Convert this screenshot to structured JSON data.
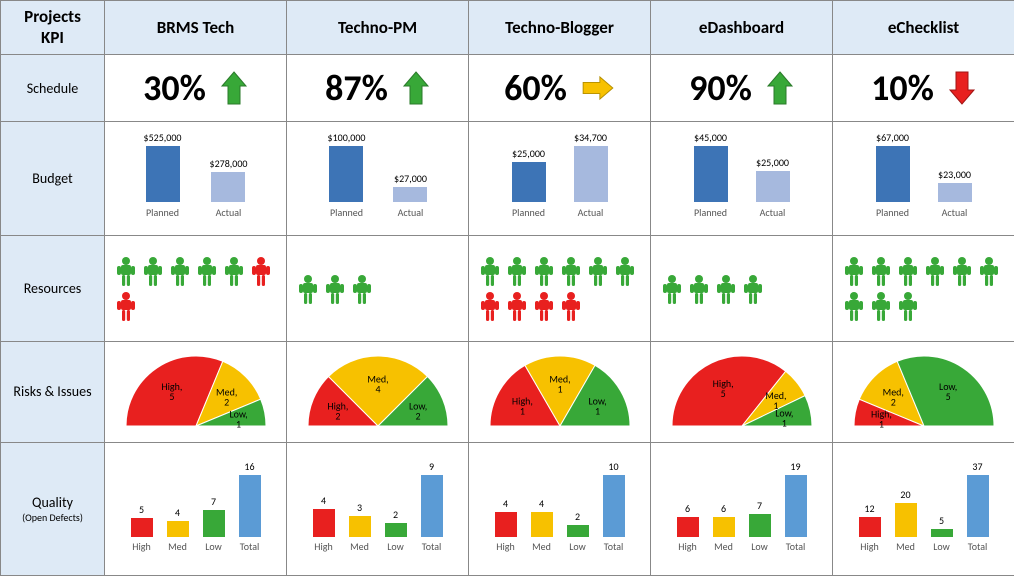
{
  "header": {
    "corner": "Projects\nKPI",
    "projects": [
      "BRMS Tech",
      "Techno-PM",
      "Techno-Blogger",
      "eDashboard",
      "eChecklist"
    ]
  },
  "rows": {
    "schedule": "Schedule",
    "budget": "Budget",
    "resources": "Resources",
    "risks": "Risks & Issues",
    "quality": "Quality",
    "quality_sub": "(Open Defects)"
  },
  "colors": {
    "headerBg": "#deeaf6",
    "border": "#888888",
    "green": "#38a838",
    "yellow": "#f7c100",
    "red": "#e8201f",
    "yellowArrow": "#f7c100",
    "barPlanned": "#3d74b6",
    "barActual": "#a6b9de",
    "qualityHigh": "#e8201f",
    "qualityMed": "#f7c100",
    "qualityLow": "#38a838",
    "qualityTotal": "#5b9bd5"
  },
  "schedule": [
    {
      "pct": "30%",
      "dir": "up-green"
    },
    {
      "pct": "87%",
      "dir": "up-green"
    },
    {
      "pct": "60%",
      "dir": "right-yellow"
    },
    {
      "pct": "90%",
      "dir": "up-green"
    },
    {
      "pct": "10%",
      "dir": "down-red"
    }
  ],
  "budget": {
    "labels": {
      "planned": "Planned",
      "actual": "Actual"
    },
    "maxHeightPx": 56,
    "data": [
      {
        "planned": 525000,
        "actual": 278000,
        "plannedLabel": "$525,000",
        "actualLabel": "$278,000"
      },
      {
        "planned": 100000,
        "actual": 27000,
        "plannedLabel": "$100,000",
        "actualLabel": "$27,000"
      },
      {
        "planned": 25000,
        "actual": 34700,
        "plannedLabel": "$25,000",
        "actualLabel": "$34,700"
      },
      {
        "planned": 45000,
        "actual": 25000,
        "plannedLabel": "$45,000",
        "actualLabel": "$25,000"
      },
      {
        "planned": 67000,
        "actual": 23000,
        "plannedLabel": "$67,000",
        "actualLabel": "$23,000"
      }
    ]
  },
  "resources": [
    {
      "green": 5,
      "red": 2
    },
    {
      "green": 3,
      "red": 0
    },
    {
      "green": 6,
      "red": 4
    },
    {
      "green": 4,
      "red": 0
    },
    {
      "green": 9,
      "red": 0
    }
  ],
  "risks": [
    {
      "high": 5,
      "med": 2,
      "low": 1
    },
    {
      "high": 2,
      "med": 4,
      "low": 2
    },
    {
      "high": 1,
      "med": 1,
      "low": 1
    },
    {
      "high": 5,
      "med": 1,
      "low": 1
    },
    {
      "high": 1,
      "med": 2,
      "low": 5
    }
  ],
  "quality": {
    "labels": [
      "High",
      "Med",
      "Low",
      "Total"
    ],
    "maxHeightPx": 62,
    "data": [
      {
        "high": 5,
        "med": 4,
        "low": 7,
        "total": 16
      },
      {
        "high": 4,
        "med": 3,
        "low": 2,
        "total": 9
      },
      {
        "high": 4,
        "med": 4,
        "low": 2,
        "total": 10
      },
      {
        "high": 6,
        "med": 6,
        "low": 7,
        "total": 19
      },
      {
        "high": 12,
        "med": 20,
        "low": 5,
        "total": 37
      }
    ]
  }
}
